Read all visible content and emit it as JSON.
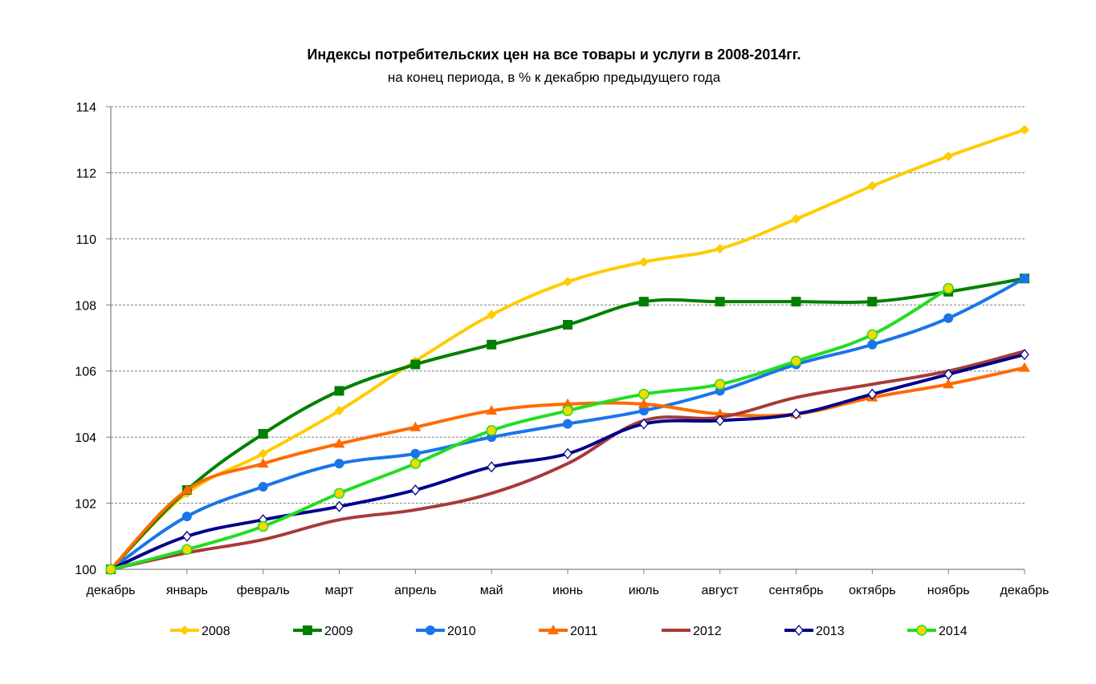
{
  "chart_data": {
    "type": "line",
    "title": "Индексы потребительских цен на все товары и услуги в 2008-2014гг.",
    "subtitle": "на конец периода, в % к декабрю предыдущего года",
    "xlabel": "",
    "ylabel": "",
    "categories": [
      "декабрь",
      "январь",
      "февраль",
      "март",
      "апрель",
      "май",
      "июнь",
      "июль",
      "август",
      "сентябрь",
      "октябрь",
      "ноябрь",
      "декабрь"
    ],
    "ylim": [
      100,
      114
    ],
    "yticks": [
      100,
      102,
      104,
      106,
      108,
      110,
      112,
      114
    ],
    "grid": "horizontal dashed",
    "legend_position": "bottom",
    "series": [
      {
        "name": "2008",
        "color": "#FFCC00",
        "marker": "diamond",
        "values": [
          100,
          102.3,
          103.5,
          104.8,
          106.3,
          107.7,
          108.7,
          109.3,
          109.7,
          110.6,
          111.6,
          112.5,
          113.3
        ]
      },
      {
        "name": "2009",
        "color": "#008000",
        "marker": "square",
        "values": [
          100,
          102.4,
          104.1,
          105.4,
          106.2,
          106.8,
          107.4,
          108.1,
          108.1,
          108.1,
          108.1,
          108.4,
          108.8
        ]
      },
      {
        "name": "2010",
        "color": "#1A75E8",
        "marker": "circle",
        "values": [
          100,
          101.6,
          102.5,
          103.2,
          103.5,
          104.0,
          104.4,
          104.8,
          105.4,
          106.2,
          106.8,
          107.6,
          108.8
        ]
      },
      {
        "name": "2011",
        "color": "#FF6A00",
        "marker": "triangle",
        "values": [
          100,
          102.4,
          103.2,
          103.8,
          104.3,
          104.8,
          105.0,
          105.0,
          104.7,
          104.7,
          105.2,
          105.6,
          106.1
        ]
      },
      {
        "name": "2012",
        "color": "#A83A3A",
        "marker": "none",
        "values": [
          100,
          100.5,
          100.9,
          101.5,
          101.8,
          102.3,
          103.2,
          104.5,
          104.6,
          105.2,
          105.6,
          106.0,
          106.6
        ]
      },
      {
        "name": "2013",
        "color": "#00008B",
        "marker": "open-diamond",
        "values": [
          100,
          101.0,
          101.5,
          101.9,
          102.4,
          103.1,
          103.5,
          104.4,
          104.5,
          104.7,
          105.3,
          105.9,
          106.5
        ]
      },
      {
        "name": "2014",
        "color": "#22DD22",
        "marker": "yellow-circle",
        "values": [
          100,
          100.6,
          101.3,
          102.3,
          103.2,
          104.2,
          104.8,
          105.3,
          105.6,
          106.3,
          107.1,
          108.5,
          null
        ]
      }
    ]
  }
}
